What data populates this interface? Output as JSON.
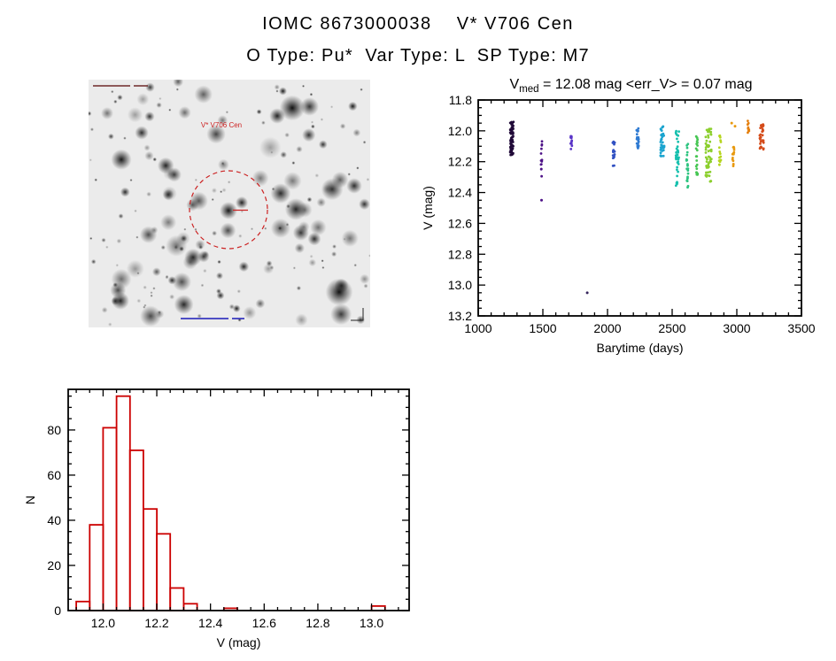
{
  "header": {
    "title": "IOMC 8673000038    V* V706 Cen",
    "subtitle": "O Type: Pu*  Var Type: L  SP Type: M7"
  },
  "finder": {
    "target_label": "V* V706 Cen",
    "circle_color": "#cc2222",
    "background": "#ebebeb"
  },
  "chart_data": [
    {
      "id": "lightcurve",
      "type": "scatter",
      "title": {
        "var": "V",
        "sub": "med",
        "rest": " = 12.08 mag <err_V> = 0.07 mag"
      },
      "xlabel": "Barytime (days)",
      "ylabel": "V (mag)",
      "xlim": [
        1000,
        3500
      ],
      "ylim_top": 11.8,
      "ylim_bottom": 13.2,
      "xticks": {
        "values": [
          1000,
          1500,
          2000,
          2500,
          3000,
          3500
        ],
        "labels": [
          "1000",
          "1500",
          "2000",
          "2500",
          "3000",
          "3500"
        ]
      },
      "yticks": {
        "values": [
          11.8,
          12.0,
          12.2,
          12.4,
          12.6,
          12.8,
          13.0,
          13.2
        ],
        "labels": [
          "11.8",
          "12.0",
          "12.2",
          "12.4",
          "12.6",
          "12.8",
          "13.0",
          "13.2"
        ]
      },
      "x_minor_step": 100,
      "y_minor_step": 0.05,
      "clusters": [
        {
          "t": 1260,
          "spread": 25,
          "vmin": 11.94,
          "vmax": 12.16,
          "n": 80,
          "color": "#200a38"
        },
        {
          "t": 1490,
          "spread": 10,
          "vmin": 12.04,
          "vmax": 12.33,
          "n": 13,
          "color": "#4c1086"
        },
        {
          "t": 1719,
          "spread": 12,
          "vmin": 12.02,
          "vmax": 12.12,
          "n": 12,
          "color": "#5a35c8"
        },
        {
          "t": 2048,
          "spread": 15,
          "vmin": 12.05,
          "vmax": 12.23,
          "n": 16,
          "color": "#3050c2"
        },
        {
          "t": 2233,
          "spread": 18,
          "vmin": 11.98,
          "vmax": 12.12,
          "n": 20,
          "color": "#2e7ad2"
        },
        {
          "t": 2425,
          "spread": 30,
          "vmin": 11.97,
          "vmax": 12.17,
          "n": 36,
          "color": "#1ba4cf"
        },
        {
          "t": 2541,
          "spread": 25,
          "vmin": 12.0,
          "vmax": 12.37,
          "n": 40,
          "color": "#17c0ae"
        },
        {
          "t": 2617,
          "spread": 15,
          "vmin": 12.08,
          "vmax": 12.37,
          "n": 22,
          "color": "#2ec480"
        },
        {
          "t": 2692,
          "spread": 15,
          "vmin": 12.03,
          "vmax": 12.3,
          "n": 20,
          "color": "#46c653"
        },
        {
          "t": 2781,
          "spread": 45,
          "vmin": 11.98,
          "vmax": 12.33,
          "n": 60,
          "color": "#8ccf2e"
        },
        {
          "t": 2870,
          "spread": 15,
          "vmin": 12.0,
          "vmax": 12.25,
          "n": 16,
          "color": "#b6d51f"
        },
        {
          "t": 2973,
          "spread": 15,
          "vmin": 12.1,
          "vmax": 12.23,
          "n": 14,
          "color": "#e8990f"
        },
        {
          "t": 3089,
          "spread": 12,
          "vmin": 11.93,
          "vmax": 12.02,
          "n": 9,
          "color": "#e5800f"
        },
        {
          "t": 3192,
          "spread": 30,
          "vmin": 11.95,
          "vmax": 12.12,
          "n": 30,
          "color": "#d44b1a"
        }
      ],
      "outliers": [
        {
          "t": 1843,
          "v": 13.05,
          "color": "#35245c"
        },
        {
          "t": 1490,
          "v": 12.45,
          "color": "#4c1086"
        },
        {
          "t": 2960,
          "v": 11.95,
          "color": "#e8990f"
        },
        {
          "t": 2986,
          "v": 11.97,
          "color": "#e8990f"
        }
      ]
    },
    {
      "id": "histogram",
      "type": "bar",
      "xlabel": "V (mag)",
      "ylabel": "N",
      "xlim": [
        11.87,
        13.14
      ],
      "ylim": [
        0,
        98
      ],
      "xticks": {
        "values": [
          12.0,
          12.2,
          12.4,
          12.6,
          12.8,
          13.0
        ],
        "labels": [
          "12.0",
          "12.2",
          "12.4",
          "12.6",
          "12.8",
          "13.0"
        ]
      },
      "yticks": {
        "values": [
          0,
          20,
          40,
          60,
          80
        ],
        "labels": [
          "0",
          "20",
          "40",
          "60",
          "80"
        ]
      },
      "x_minor_step": 0.05,
      "y_minor_step": 5,
      "bin_width": 0.05,
      "bins": [
        {
          "x0": 11.9,
          "n": 4
        },
        {
          "x0": 11.95,
          "n": 38
        },
        {
          "x0": 12.0,
          "n": 81
        },
        {
          "x0": 12.05,
          "n": 95
        },
        {
          "x0": 12.1,
          "n": 71
        },
        {
          "x0": 12.15,
          "n": 45
        },
        {
          "x0": 12.2,
          "n": 34
        },
        {
          "x0": 12.25,
          "n": 10
        },
        {
          "x0": 12.3,
          "n": 3
        },
        {
          "x0": 12.45,
          "n": 1
        },
        {
          "x0": 13.0,
          "n": 2
        }
      ],
      "color": "#cc0000"
    }
  ]
}
